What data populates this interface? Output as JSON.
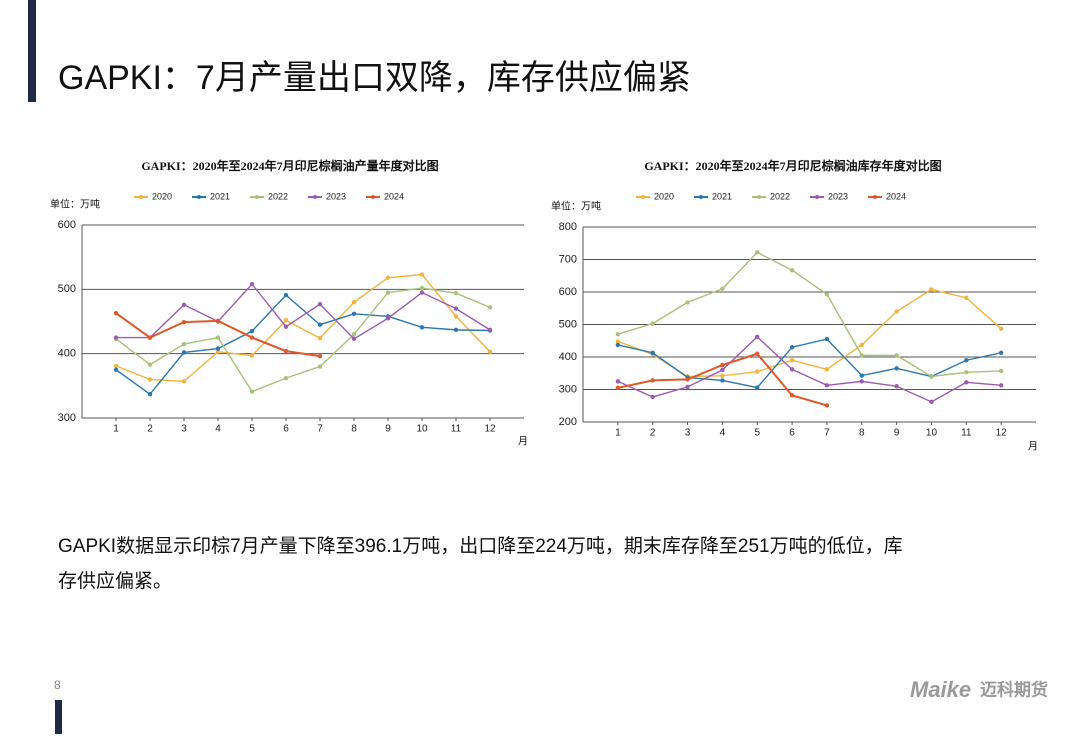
{
  "title": "GAPKI：7月产量出口双降，库存供应偏紧",
  "chart_data": [
    {
      "type": "line",
      "title": "GAPKI：2020年至2024年7月印尼棕榈油产量年度对比图",
      "y_label": "单位：万吨",
      "x_label": "月",
      "x": [
        1,
        2,
        3,
        4,
        5,
        6,
        7,
        8,
        9,
        10,
        11,
        12
      ],
      "xlim": [
        0,
        13
      ],
      "xticks": [
        1,
        2,
        3,
        4,
        5,
        6,
        7,
        8,
        9,
        10,
        11,
        12
      ],
      "ylim": [
        300,
        600
      ],
      "yticks": [
        300,
        400,
        500,
        600
      ],
      "grid": true,
      "legend": "top",
      "series": [
        {
          "name": "2020",
          "color": "#f3b33d",
          "values": [
            381,
            360,
            357,
            403,
            397,
            452,
            424,
            480,
            518,
            523,
            458,
            403
          ]
        },
        {
          "name": "2021",
          "color": "#2a78b0",
          "values": [
            375,
            337,
            402,
            408,
            435,
            491,
            445,
            462,
            458,
            441,
            437,
            436
          ]
        },
        {
          "name": "2022",
          "color": "#a8c27a",
          "values": [
            423,
            383,
            415,
            425,
            341,
            362,
            380,
            430,
            495,
            502,
            494,
            472
          ]
        },
        {
          "name": "2023",
          "color": "#9b5bb0",
          "values": [
            425,
            425,
            476,
            450,
            508,
            442,
            477,
            423,
            455,
            495,
            470,
            437
          ]
        },
        {
          "name": "2024",
          "color": "#e0572a",
          "values": [
            463,
            425,
            449,
            451,
            425,
            404,
            396.1,
            null,
            null,
            null,
            null,
            null
          ]
        }
      ]
    },
    {
      "type": "line",
      "title": "GAPKI：2020年至2024年7月印尼棕榈油库存年度对比图",
      "y_label": "单位：万吨",
      "x_label": "月",
      "x": [
        1,
        2,
        3,
        4,
        5,
        6,
        7,
        8,
        9,
        10,
        11,
        12
      ],
      "xlim": [
        0,
        13
      ],
      "xticks": [
        1,
        2,
        3,
        4,
        5,
        6,
        7,
        8,
        9,
        10,
        11,
        12
      ],
      "ylim": [
        200,
        800
      ],
      "yticks": [
        200,
        300,
        400,
        500,
        600,
        700,
        800
      ],
      "grid": true,
      "legend": "top",
      "series": [
        {
          "name": "2020",
          "color": "#f3b33d",
          "values": [
            448,
            408,
            340,
            342,
            355,
            390,
            362,
            437,
            540,
            608,
            582,
            487
          ]
        },
        {
          "name": "2021",
          "color": "#2a78b0",
          "values": [
            437,
            413,
            337,
            328,
            306,
            430,
            455,
            343,
            365,
            340,
            390,
            413
          ]
        },
        {
          "name": "2022",
          "color": "#a8c27a",
          "values": [
            470,
            503,
            568,
            610,
            722,
            667,
            593,
            405,
            405,
            340,
            353,
            357
          ]
        },
        {
          "name": "2023",
          "color": "#9b5bb0",
          "values": [
            325,
            277,
            308,
            360,
            462,
            362,
            313,
            325,
            310,
            262,
            322,
            313
          ]
        },
        {
          "name": "2024",
          "color": "#e0572a",
          "values": [
            305,
            328,
            331,
            375,
            410,
            282,
            251,
            null,
            null,
            null,
            null,
            null
          ]
        }
      ]
    }
  ],
  "body": [
    "GAPKI数据显示印棕7月产量下降至396.1万吨，出口降至224万吨，期末库存降至251万吨的低位，库",
    "存供应偏紧。"
  ],
  "page_number": 8,
  "logo": {
    "brand": "Maike",
    "name": "迈科期货"
  }
}
